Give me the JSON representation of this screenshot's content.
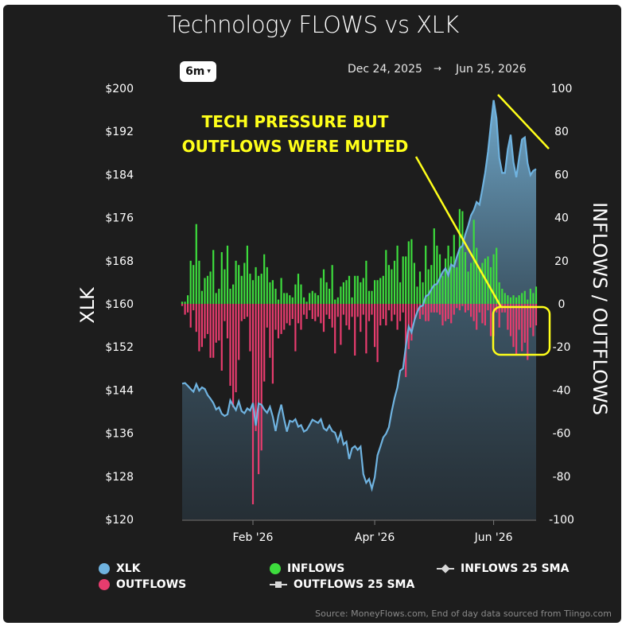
{
  "header": {
    "title": "Technology FLOWS vs XLK",
    "range_button": "6m",
    "date_start": "Dec 24, 2025",
    "date_arrow": "→",
    "date_end": "Jun 25, 2026"
  },
  "colors": {
    "xlk": "#6fb3e0",
    "inflows": "#3ddc3d",
    "outflows": "#e83c6e",
    "annotation": "#ffff1a",
    "background": "#1d1d1d"
  },
  "chart_data": {
    "type": "bar",
    "xlabel": "",
    "ylabel_left": "XLK",
    "ylabel_right": "INFLOWS / OUTFLOWS",
    "y_left_lim": [
      120,
      200
    ],
    "y_left_ticks": [
      "$120",
      "$128",
      "$136",
      "$144",
      "$152",
      "$160",
      "$168",
      "$176",
      "$184",
      "$192",
      "$200"
    ],
    "y_right_lim": [
      -100,
      100
    ],
    "y_right_ticks": [
      "-100",
      "-80",
      "-60",
      "-40",
      "-20",
      "0",
      "20",
      "40",
      "60",
      "80",
      "100"
    ],
    "x_ticks": [
      "Feb '26",
      "Apr '26",
      "Jun '26"
    ],
    "x_tick_index": [
      25,
      68,
      110
    ],
    "grid": false,
    "legend_position": "bottom",
    "legend": [
      "XLK",
      "OUTFLOWS",
      "INFLOWS",
      "OUTFLOWS 25 SMA",
      "INFLOWS 25 SMA"
    ],
    "annotation": "TECH PRESSURE BUT\nOUTFLOWS WERE MUTED",
    "series": [
      {
        "name": "XLK",
        "kind": "area-line",
        "values": [
          145.2,
          145.3,
          144.8,
          144.2,
          143.7,
          145.1,
          143.9,
          144.5,
          144.2,
          143.1,
          142.4,
          141.6,
          140.4,
          140.8,
          139.6,
          139.2,
          139.5,
          142.1,
          141.1,
          140.3,
          141.9,
          140.1,
          139.7,
          140.6,
          140.2,
          141.6,
          137.4,
          141.5,
          141.3,
          140.4,
          139.8,
          140.9,
          139.1,
          136.4,
          139.3,
          141.3,
          138.6,
          136.3,
          138.3,
          138.1,
          138.6,
          137.2,
          137.5,
          136.3,
          136.6,
          137.5,
          138.5,
          138.2,
          137.9,
          138.6,
          136.9,
          136.5,
          137.4,
          136.4,
          136.1,
          134.5,
          136.1,
          133.9,
          134.4,
          131.2,
          133.2,
          133.6,
          132.9,
          133.5,
          128.4,
          126.8,
          127.5,
          125.7,
          127.8,
          131.9,
          133.5,
          135.2,
          135.9,
          137.1,
          140.0,
          142.5,
          144.5,
          147.6,
          148.0,
          152.1,
          155.8,
          154.7,
          156.9,
          158.5,
          159.5,
          159.7,
          161.4,
          161.7,
          162.7,
          163.5,
          163.7,
          164.8,
          165.9,
          166.6,
          165.3,
          167.3,
          166.9,
          168.7,
          170.3,
          170.8,
          172.9,
          174.5,
          176.4,
          177.4,
          178.9,
          178.4,
          181.3,
          184.3,
          188.2,
          193.1,
          197.8,
          194.4,
          187.1,
          184.3,
          184.3,
          188.7,
          191.4,
          186.3,
          183.5,
          187.1,
          190.5,
          190.9,
          186.1,
          183.9,
          184.7,
          185.0
        ]
      },
      {
        "name": "INFLOWS",
        "kind": "bar",
        "values": [
          1,
          1,
          4,
          20,
          18,
          37,
          20,
          6,
          12,
          13,
          15,
          25,
          5,
          7,
          24,
          16,
          27,
          7,
          9,
          20,
          18,
          13,
          19,
          27,
          14,
          11,
          17,
          13,
          14,
          23,
          17,
          10,
          11,
          7,
          2,
          12,
          5,
          5,
          4,
          3,
          9,
          14,
          9,
          3,
          1,
          5,
          6,
          5,
          4,
          12,
          16,
          10,
          7,
          18,
          2,
          3,
          8,
          10,
          11,
          13,
          3,
          13,
          13,
          10,
          12,
          20,
          6,
          6,
          11,
          11,
          12,
          13,
          25,
          18,
          16,
          20,
          27,
          10,
          22,
          22,
          29,
          30,
          19,
          8,
          15,
          10,
          27,
          16,
          18,
          35,
          27,
          23,
          13,
          21,
          27,
          22,
          32,
          17,
          44,
          43,
          24,
          15,
          19,
          39,
          26,
          17,
          19,
          21,
          22,
          17,
          23,
          26,
          10,
          7,
          5,
          4,
          3,
          4,
          3,
          4,
          5,
          6,
          2,
          7,
          5,
          8
        ]
      },
      {
        "name": "OUTFLOWS",
        "kind": "bar",
        "values": [
          -1,
          -5,
          -4,
          -11,
          -3,
          -13,
          -22,
          -20,
          -16,
          -14,
          -25,
          -25,
          -18,
          -17,
          -31,
          -8,
          -16,
          -38,
          -48,
          -41,
          -26,
          -8,
          -7,
          -6,
          -22,
          -93,
          -59,
          -79,
          -68,
          -36,
          -11,
          -25,
          -37,
          -12,
          -16,
          -14,
          -12,
          -9,
          -10,
          -7,
          -22,
          -9,
          -12,
          -5,
          -7,
          -3,
          -7,
          -8,
          -6,
          -9,
          -13,
          -5,
          -7,
          -11,
          -23,
          -6,
          -19,
          -5,
          -10,
          -12,
          -6,
          -24,
          -6,
          -13,
          -5,
          -23,
          -8,
          -5,
          -20,
          -27,
          -10,
          -7,
          -10,
          -3,
          -8,
          -5,
          -12,
          -8,
          -4,
          -34,
          -21,
          -17,
          -8,
          -4,
          -7,
          -5,
          -8,
          -8,
          -4,
          -4,
          -4,
          -5,
          -10,
          -8,
          -7,
          -9,
          -5,
          -2,
          -3,
          -1,
          -4,
          -3,
          -6,
          -8,
          -12,
          -4,
          -9,
          -10,
          -3,
          -15,
          -15,
          -4,
          -11,
          -4,
          -4,
          -12,
          -15,
          -20,
          -24,
          -12,
          -22,
          -18,
          -26,
          -11,
          -15,
          -10
        ]
      }
    ]
  },
  "legend": {
    "xlk": "XLK",
    "outflows": "OUTFLOWS",
    "inflows": "INFLOWS",
    "outflows_sma": "OUTFLOWS 25 SMA",
    "inflows_sma": "INFLOWS 25 SMA"
  },
  "footer": {
    "source": "Source: MoneyFlows.com, End of day data sourced from Tiingo.com"
  }
}
